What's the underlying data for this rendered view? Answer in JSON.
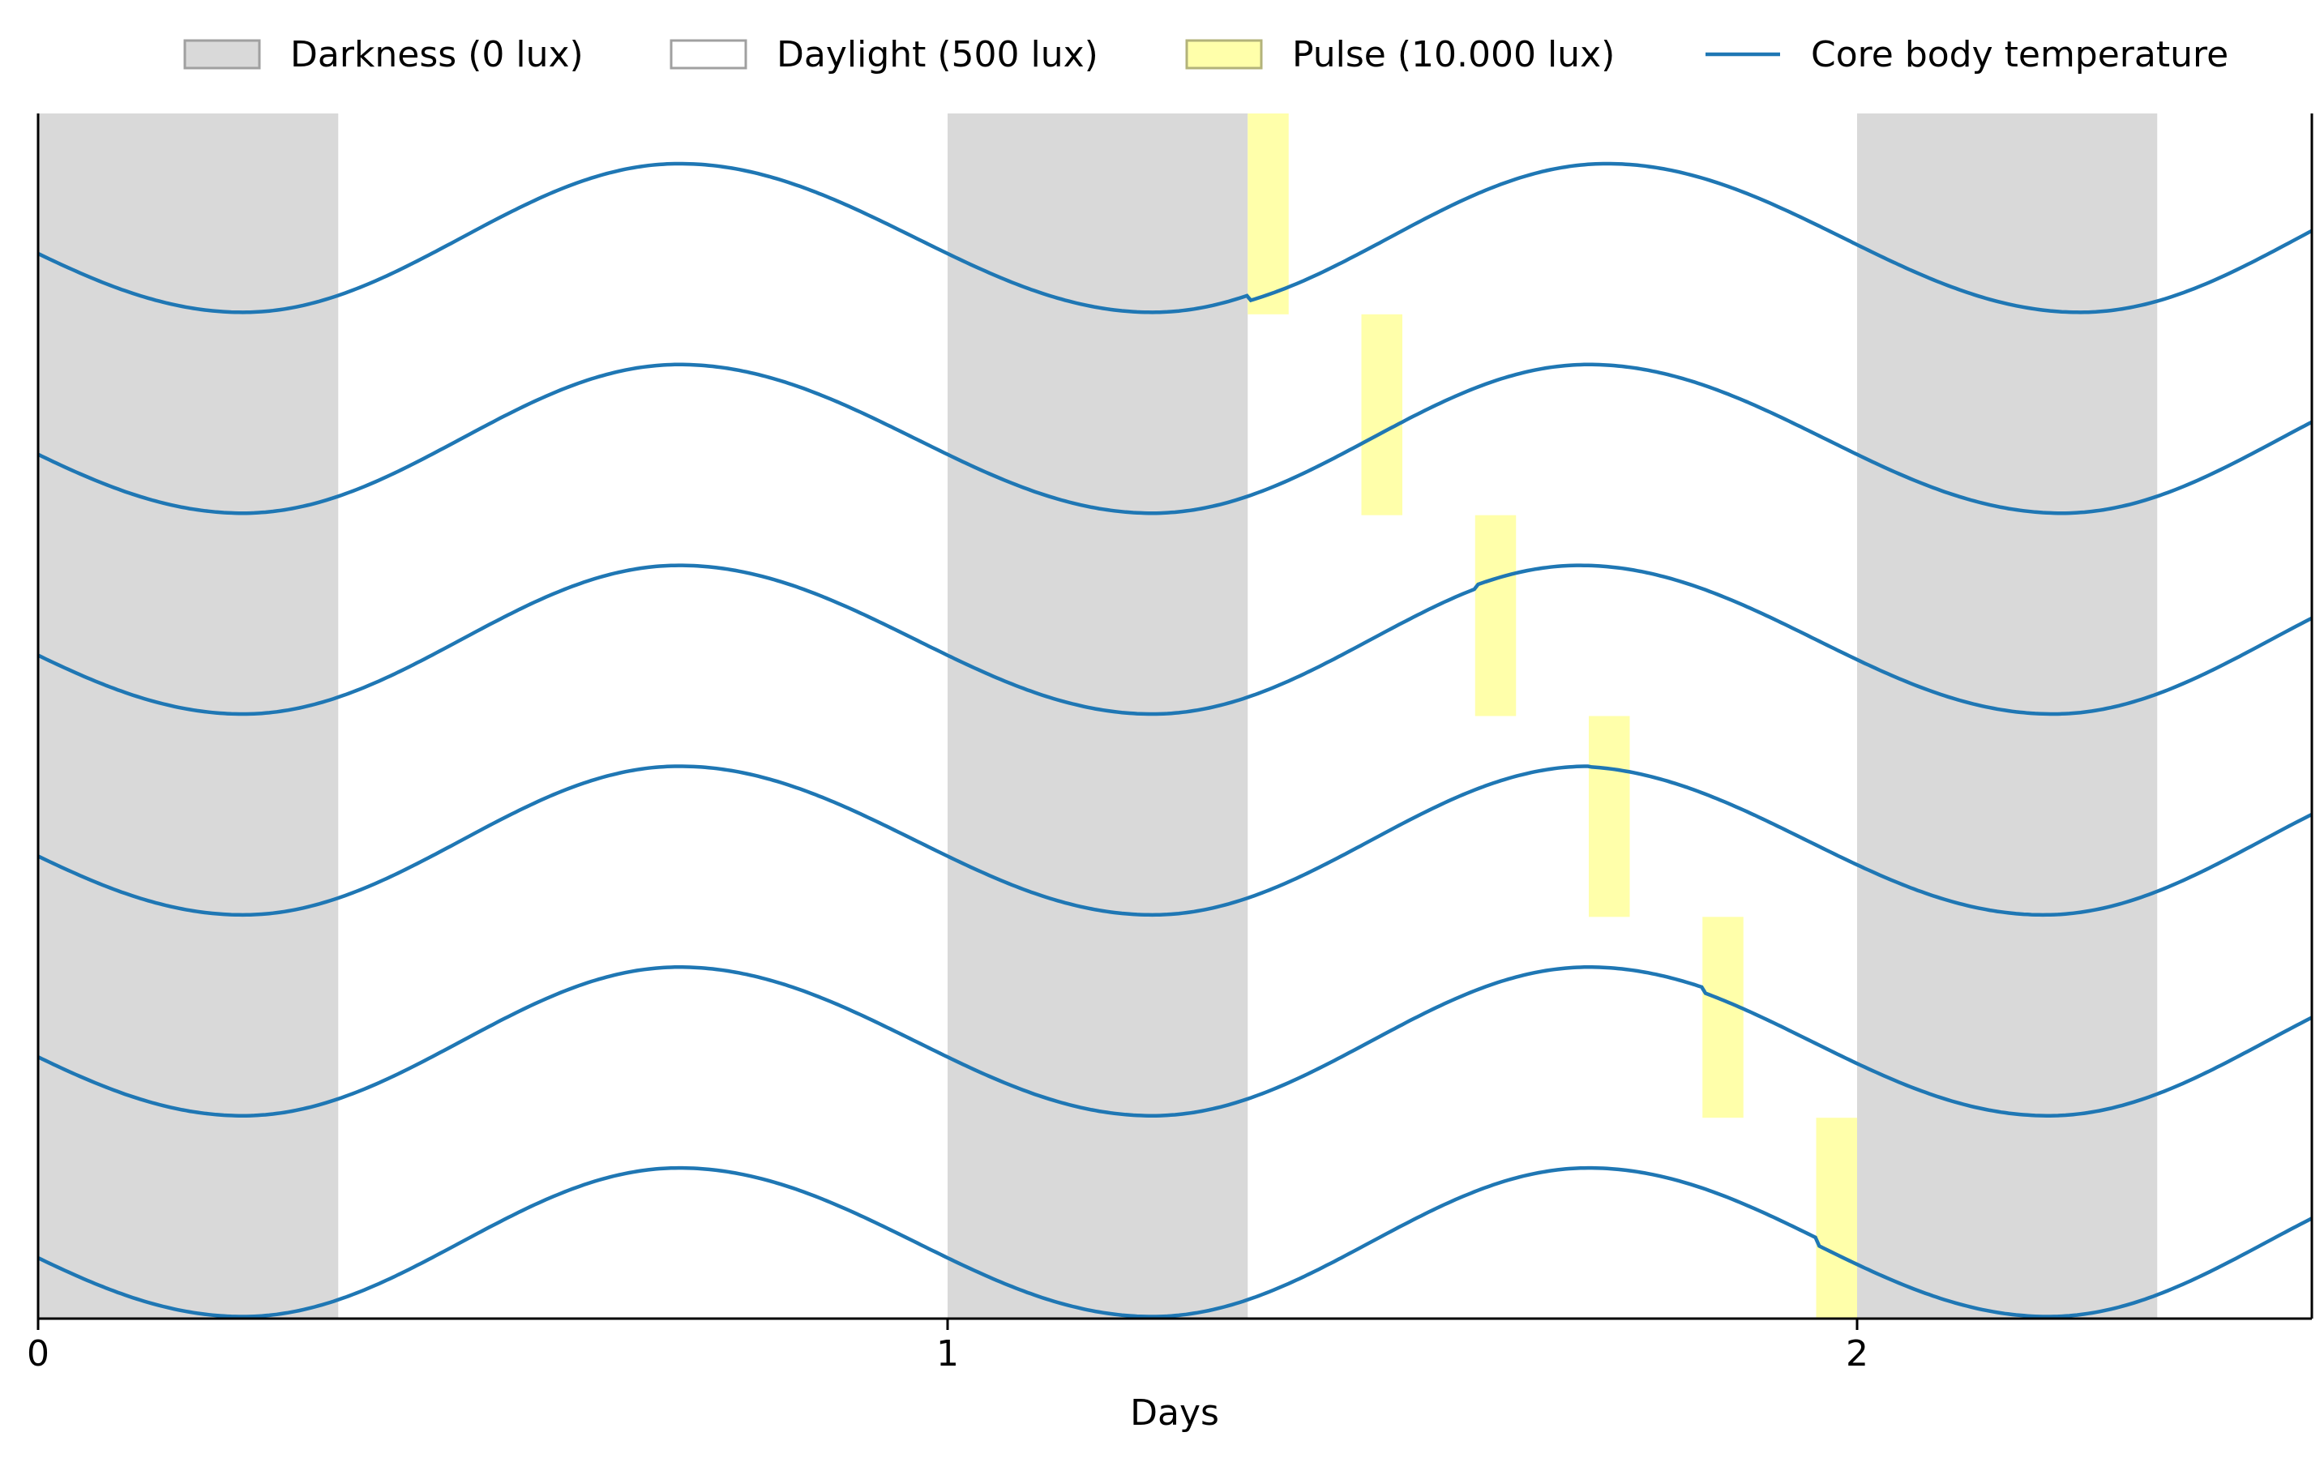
{
  "chart_data": {
    "type": "line",
    "title": "",
    "xlabel": "Days",
    "ylabel": "",
    "xlim": [
      0,
      2.5
    ],
    "xticks": [
      0,
      1,
      2
    ],
    "tick_labels": [
      "0",
      "1",
      "2"
    ],
    "grid": false,
    "y_ticks_shown": false,
    "legend": {
      "placement": "top, above plot, single row",
      "entries": [
        {
          "label": "Darkness (0 lux)",
          "kind": "patch",
          "color": "#d9d9d9"
        },
        {
          "label": "Daylight (500 lux)",
          "kind": "patch",
          "color": "#ffffff"
        },
        {
          "label": "Pulse (10.000 lux)",
          "kind": "patch",
          "color": "#ffffaa"
        },
        {
          "label": "Core body temperature",
          "kind": "line",
          "color": "#1f77b4"
        }
      ]
    },
    "darkness_intervals": [
      [
        0,
        0.33
      ],
      [
        1,
        1.33
      ],
      [
        2,
        2.33
      ]
    ],
    "pulse_duration_days": 0.045,
    "rows": [
      {
        "pulse_start": 1.33,
        "phase_shift_after_pulse_days": 0.02
      },
      {
        "pulse_start": 1.455,
        "phase_shift_after_pulse_days": 0.0
      },
      {
        "pulse_start": 1.58,
        "phase_shift_after_pulse_days": -0.01
      },
      {
        "pulse_start": 1.705,
        "phase_shift_after_pulse_days": -0.02
      },
      {
        "pulse_start": 1.83,
        "phase_shift_after_pulse_days": -0.015
      },
      {
        "pulse_start": 1.955,
        "phase_shift_after_pulse_days": -0.015
      }
    ],
    "temperature_curve": {
      "series_name": "Core body temperature",
      "trough_day_fraction": 0.225,
      "peak_day_fraction": 0.705,
      "period_days": 1.0
    },
    "colors": {
      "darkness": "#d9d9d9",
      "pulse": "#ffffaa",
      "line": "#1f77b4",
      "axis": "#000000"
    }
  }
}
